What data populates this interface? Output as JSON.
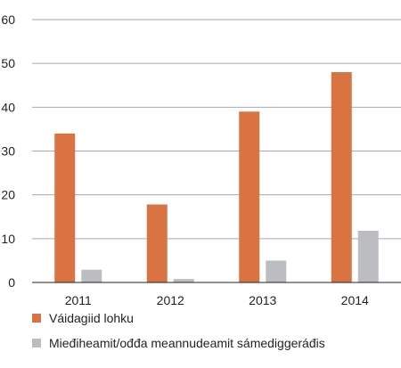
{
  "chart_data": {
    "type": "bar",
    "categories": [
      "2011",
      "2012",
      "2013",
      "2014"
    ],
    "series": [
      {
        "name": "Váidagiid lohku",
        "values": [
          34,
          17.8,
          39,
          48
        ],
        "color": "#d97442"
      },
      {
        "name": "Mieđiheamit/ođđa meannudeamit sámediggeráđis",
        "values": [
          2.9,
          0.8,
          5,
          11.8
        ],
        "color": "#bcbdc0"
      }
    ],
    "yticks": [
      "0",
      "10",
      "20",
      "30",
      "40",
      "50",
      "60"
    ],
    "ylim": [
      0,
      60
    ],
    "grid": true,
    "legend_position": "bottom"
  }
}
